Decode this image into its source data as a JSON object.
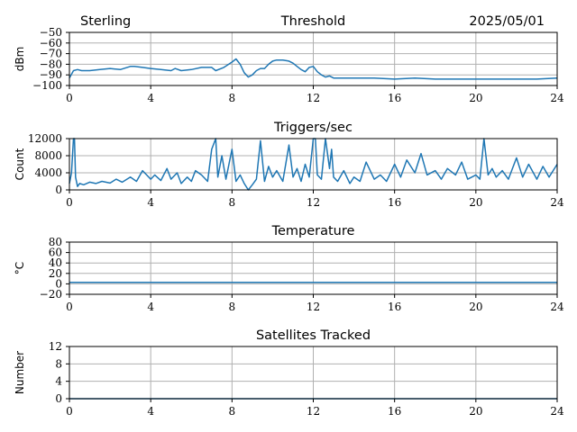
{
  "header": {
    "station": "Sterling",
    "date": "2025/05/01"
  },
  "colors": {
    "line": "#1f77b4",
    "grid": "#b0b0b0"
  },
  "chart_data": [
    {
      "type": "line",
      "title": "Threshold",
      "ylabel": "dBm",
      "xlim": [
        0,
        24
      ],
      "ylim": [
        -100,
        -50
      ],
      "xticks": [
        0,
        4,
        8,
        12,
        16,
        20,
        24
      ],
      "yticks": [
        -100,
        -90,
        -80,
        -70,
        -60,
        -50
      ],
      "xticklabels": [
        "0",
        "4",
        "8",
        "12",
        "16",
        "20",
        "24"
      ],
      "yticklabels": [
        "−100",
        "−90",
        "−80",
        "−70",
        "−60",
        "−50"
      ],
      "grid": true,
      "x": [
        0,
        0.2,
        0.4,
        0.6,
        1,
        1.5,
        2,
        2.5,
        3,
        3.2,
        3.6,
        4,
        4.5,
        5,
        5.2,
        5.5,
        6,
        6.5,
        7,
        7.2,
        7.6,
        8,
        8.2,
        8.4,
        8.6,
        8.8,
        9,
        9.2,
        9.4,
        9.6,
        9.8,
        10,
        10.2,
        10.5,
        10.8,
        11,
        11.2,
        11.4,
        11.6,
        11.8,
        12,
        12.2,
        12.4,
        12.6,
        12.8,
        13,
        13.5,
        14,
        15,
        16,
        17,
        18,
        19,
        20,
        21,
        22,
        23,
        24
      ],
      "y": [
        -93,
        -86,
        -85,
        -86,
        -86,
        -85,
        -84,
        -85,
        -82,
        -82,
        -83,
        -84,
        -85,
        -86,
        -84,
        -86,
        -85,
        -83,
        -83,
        -86,
        -83,
        -78,
        -75,
        -80,
        -88,
        -92,
        -90,
        -86,
        -84,
        -84,
        -80,
        -77,
        -76,
        -76,
        -77,
        -79,
        -82,
        -85,
        -87,
        -83,
        -82,
        -87,
        -90,
        -92,
        -91,
        -93,
        -93,
        -93,
        -93,
        -94,
        -93,
        -94,
        -94,
        -94,
        -94,
        -94,
        -94,
        -93
      ]
    },
    {
      "type": "line",
      "title": "Triggers/sec",
      "ylabel": "Count",
      "xlim": [
        0,
        24
      ],
      "ylim": [
        0,
        12000
      ],
      "xticks": [
        0,
        4,
        8,
        12,
        16,
        20,
        24
      ],
      "yticks": [
        0,
        4000,
        8000,
        12000
      ],
      "xticklabels": [
        "0",
        "4",
        "8",
        "12",
        "16",
        "20",
        "24"
      ],
      "yticklabels": [
        "0",
        "4000",
        "8000",
        "12000"
      ],
      "grid": true,
      "x": [
        0,
        0.1,
        0.2,
        0.25,
        0.3,
        0.4,
        0.5,
        0.7,
        1,
        1.3,
        1.6,
        2,
        2.3,
        2.6,
        3,
        3.3,
        3.6,
        4,
        4.2,
        4.5,
        4.8,
        5,
        5.3,
        5.5,
        5.8,
        6,
        6.2,
        6.5,
        6.8,
        7,
        7.2,
        7.3,
        7.5,
        7.7,
        8,
        8.2,
        8.4,
        8.6,
        8.8,
        9,
        9.2,
        9.4,
        9.6,
        9.8,
        10,
        10.2,
        10.5,
        10.8,
        11,
        11.2,
        11.4,
        11.6,
        11.8,
        12,
        12.1,
        12.2,
        12.4,
        12.6,
        12.8,
        12.9,
        13,
        13.2,
        13.5,
        13.8,
        14,
        14.3,
        14.6,
        15,
        15.3,
        15.6,
        16,
        16.3,
        16.6,
        17,
        17.3,
        17.6,
        18,
        18.3,
        18.6,
        19,
        19.3,
        19.6,
        20,
        20.2,
        20.4,
        20.6,
        20.8,
        21,
        21.3,
        21.6,
        22,
        22.3,
        22.6,
        23,
        23.3,
        23.6,
        24
      ],
      "y": [
        1500,
        4000,
        12000,
        12000,
        3000,
        800,
        1500,
        1200,
        1800,
        1500,
        2000,
        1600,
        2500,
        1800,
        3000,
        2000,
        4500,
        2500,
        3500,
        2200,
        5000,
        2500,
        4000,
        1500,
        3000,
        2000,
        4500,
        3500,
        2000,
        9500,
        12000,
        3000,
        8000,
        2500,
        9500,
        2000,
        3500,
        1500,
        0,
        1200,
        2500,
        11500,
        2000,
        5500,
        3000,
        4500,
        2000,
        10500,
        3000,
        5000,
        2000,
        6000,
        3000,
        12000,
        12000,
        3500,
        2500,
        12000,
        5000,
        9500,
        3000,
        2000,
        4500,
        1500,
        3000,
        2000,
        6500,
        2500,
        3500,
        2000,
        6000,
        3000,
        7000,
        4000,
        8500,
        3500,
        4500,
        2500,
        5000,
        3500,
        6500,
        2500,
        3500,
        2500,
        12000,
        3500,
        5000,
        3000,
        4500,
        2500,
        7500,
        3000,
        6000,
        2500,
        5500,
        3000,
        6000
      ]
    },
    {
      "type": "line",
      "title": "Temperature",
      "ylabel": "°C",
      "xlim": [
        0,
        24
      ],
      "ylim": [
        -20,
        80
      ],
      "xticks": [
        0,
        4,
        8,
        12,
        16,
        20,
        24
      ],
      "yticks": [
        -20,
        0,
        20,
        40,
        60,
        80
      ],
      "xticklabels": [
        "0",
        "4",
        "8",
        "12",
        "16",
        "20",
        "24"
      ],
      "yticklabels": [
        "−20",
        "0",
        "20",
        "40",
        "60",
        "80"
      ],
      "grid": true,
      "x": [
        0,
        24
      ],
      "y": [
        3,
        3
      ]
    },
    {
      "type": "line",
      "title": "Satellites Tracked",
      "ylabel": "Number",
      "xlim": [
        0,
        24
      ],
      "ylim": [
        0,
        12
      ],
      "xticks": [
        0,
        4,
        8,
        12,
        16,
        20,
        24
      ],
      "yticks": [
        0,
        4,
        8,
        12
      ],
      "xticklabels": [
        "0",
        "4",
        "8",
        "12",
        "16",
        "20",
        "24"
      ],
      "yticklabels": [
        "0",
        "4",
        "8",
        "12"
      ],
      "grid": true,
      "x": [
        0,
        24
      ],
      "y": [
        0,
        0
      ]
    }
  ]
}
